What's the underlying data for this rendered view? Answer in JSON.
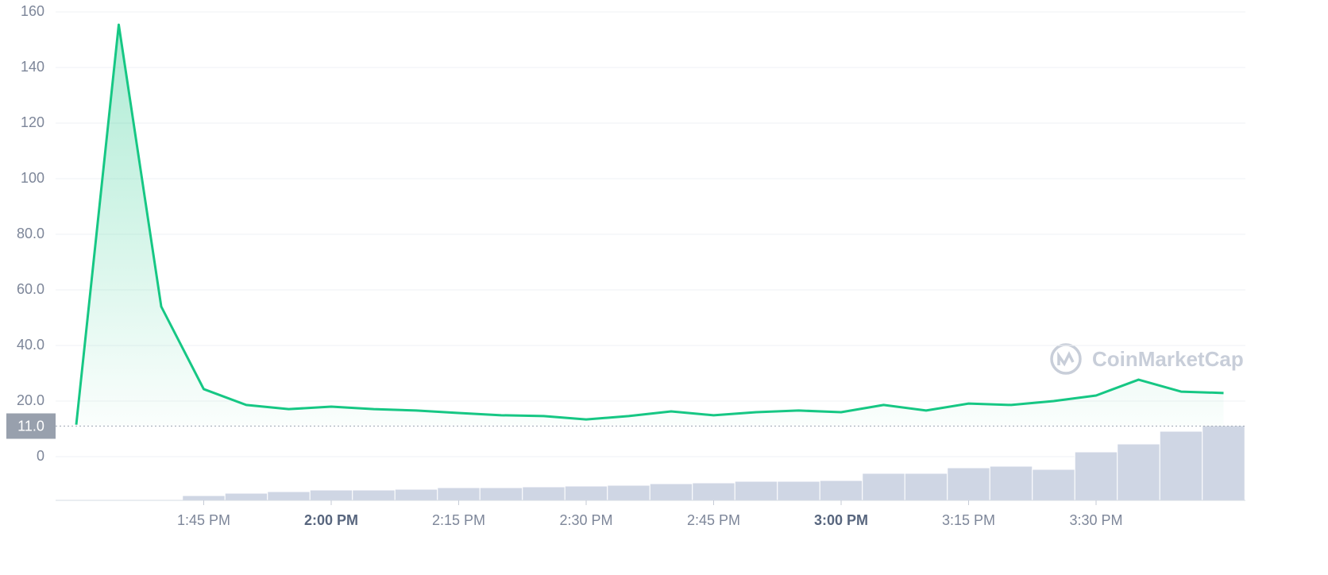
{
  "chart_data": {
    "type": "line",
    "categories": [
      null,
      null,
      null,
      "1:45 PM",
      null,
      null,
      "2:00 PM",
      null,
      null,
      "2:15 PM",
      null,
      null,
      "2:30 PM",
      null,
      null,
      "2:45 PM",
      null,
      null,
      "3:00 PM",
      null,
      null,
      "3:15 PM",
      null,
      null,
      "3:30 PM",
      null,
      null,
      null
    ],
    "series": [
      {
        "color": "#16c784",
        "values": [
          11.5,
          155.4,
          54,
          24.3,
          18.6,
          17.1,
          18,
          17.1,
          16.6,
          15.7,
          14.9,
          14.6,
          13.4,
          14.6,
          16.3,
          14.9,
          16,
          16.6,
          16,
          18.6,
          16.6,
          19.1,
          18.6,
          20,
          22,
          27.7,
          23.4,
          22.9
        ]
      }
    ],
    "ylim": [
      0,
      160
    ],
    "yticks": [
      0,
      {
        "value": 20,
        "label": "20.0"
      },
      {
        "value": 40,
        "label": "40.0"
      },
      {
        "value": 60,
        "label": "60.0"
      },
      {
        "value": 80,
        "label": "80.0"
      },
      100,
      120,
      140,
      160
    ],
    "grid": true,
    "baseline": {
      "value": 11,
      "label": "11.0"
    },
    "volume": {
      "color": "#cfd6e4",
      "ylim": [
        0,
        100
      ],
      "values": [
        1,
        1,
        1,
        6,
        9,
        11,
        13,
        13,
        14,
        16,
        16,
        17,
        18,
        19,
        21,
        22,
        24,
        24,
        25,
        34,
        34,
        41,
        43,
        39,
        61,
        71,
        87,
        94
      ]
    },
    "watermark": "CoinMarketCap"
  }
}
